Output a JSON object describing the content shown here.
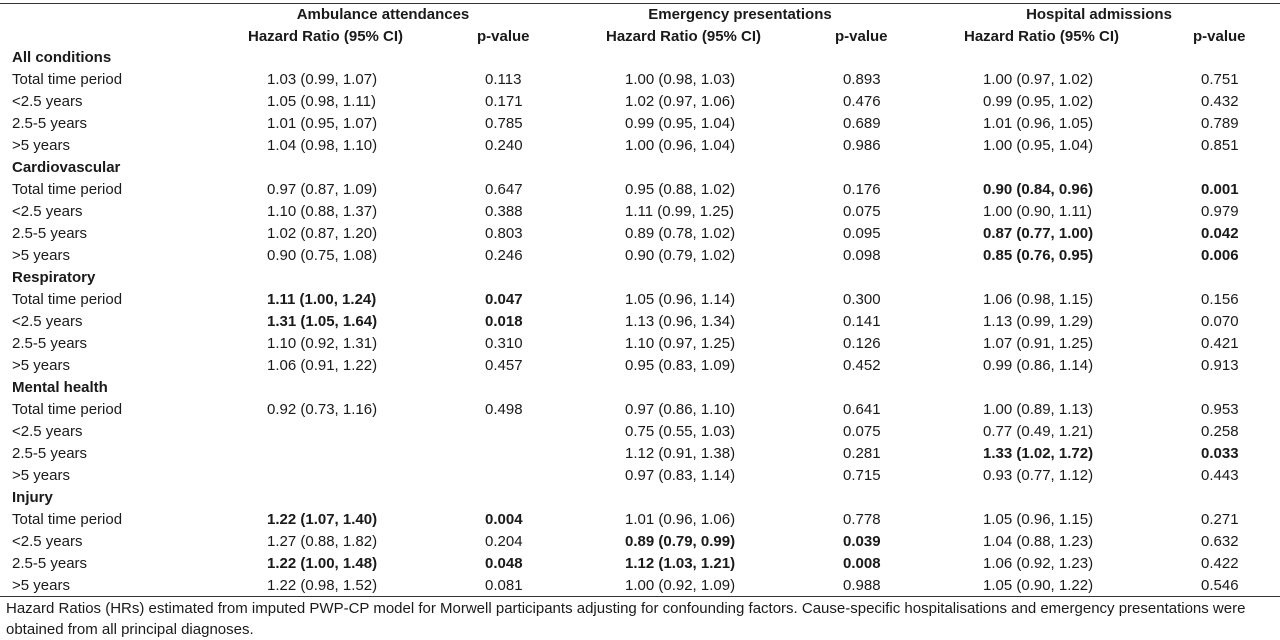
{
  "table": {
    "column_groups": [
      "Ambulance attendances",
      "Emergency presentations",
      "Hospital admissions"
    ],
    "hr_header": "Hazard Ratio (95% CI)",
    "p_header": "p-value",
    "rows": [
      {
        "kind": "group",
        "label": "All conditions"
      },
      {
        "kind": "data",
        "label": "Total time period",
        "cells": [
          {
            "hr": "1.03 (0.99, 1.07)",
            "p": "0.113",
            "bold": false
          },
          {
            "hr": "1.00 (0.98, 1.03)",
            "p": "0.893",
            "bold": false
          },
          {
            "hr": "1.00 (0.97, 1.02)",
            "p": "0.751",
            "bold": false
          }
        ]
      },
      {
        "kind": "data",
        "label": "<2.5 years",
        "cells": [
          {
            "hr": "1.05 (0.98, 1.11)",
            "p": "0.171",
            "bold": false
          },
          {
            "hr": "1.02 (0.97, 1.06)",
            "p": "0.476",
            "bold": false
          },
          {
            "hr": "0.99 (0.95, 1.02)",
            "p": "0.432",
            "bold": false
          }
        ]
      },
      {
        "kind": "data",
        "label": "2.5-5 years",
        "cells": [
          {
            "hr": "1.01 (0.95, 1.07)",
            "p": "0.785",
            "bold": false
          },
          {
            "hr": "0.99 (0.95, 1.04)",
            "p": "0.689",
            "bold": false
          },
          {
            "hr": "1.01 (0.96, 1.05)",
            "p": "0.789",
            "bold": false
          }
        ]
      },
      {
        "kind": "data",
        "label": ">5 years",
        "cells": [
          {
            "hr": "1.04 (0.98, 1.10)",
            "p": "0.240",
            "bold": false
          },
          {
            "hr": "1.00 (0.96, 1.04)",
            "p": "0.986",
            "bold": false
          },
          {
            "hr": "1.00 (0.95, 1.04)",
            "p": "0.851",
            "bold": false
          }
        ]
      },
      {
        "kind": "group",
        "label": "Cardiovascular"
      },
      {
        "kind": "data",
        "label": "Total time period",
        "cells": [
          {
            "hr": "0.97 (0.87, 1.09)",
            "p": "0.647",
            "bold": false
          },
          {
            "hr": "0.95 (0.88, 1.02)",
            "p": "0.176",
            "bold": false
          },
          {
            "hr": "0.90 (0.84, 0.96)",
            "p": "0.001",
            "bold": true
          }
        ]
      },
      {
        "kind": "data",
        "label": "<2.5 years",
        "cells": [
          {
            "hr": "1.10 (0.88, 1.37)",
            "p": "0.388",
            "bold": false
          },
          {
            "hr": "1.11 (0.99, 1.25)",
            "p": "0.075",
            "bold": false
          },
          {
            "hr": "1.00 (0.90, 1.11)",
            "p": "0.979",
            "bold": false
          }
        ]
      },
      {
        "kind": "data",
        "label": "2.5-5 years",
        "cells": [
          {
            "hr": "1.02 (0.87, 1.20)",
            "p": "0.803",
            "bold": false
          },
          {
            "hr": "0.89 (0.78, 1.02)",
            "p": "0.095",
            "bold": false
          },
          {
            "hr": "0.87 (0.77, 1.00)",
            "p": "0.042",
            "bold": true
          }
        ]
      },
      {
        "kind": "data",
        "label": ">5 years",
        "cells": [
          {
            "hr": "0.90 (0.75, 1.08)",
            "p": "0.246",
            "bold": false
          },
          {
            "hr": "0.90 (0.79, 1.02)",
            "p": "0.098",
            "bold": false
          },
          {
            "hr": "0.85 (0.76, 0.95)",
            "p": "0.006",
            "bold": true
          }
        ]
      },
      {
        "kind": "group",
        "label": "Respiratory"
      },
      {
        "kind": "data",
        "label": "Total time period",
        "cells": [
          {
            "hr": "1.11 (1.00, 1.24)",
            "p": "0.047",
            "bold": true
          },
          {
            "hr": "1.05 (0.96, 1.14)",
            "p": "0.300",
            "bold": false
          },
          {
            "hr": "1.06 (0.98, 1.15)",
            "p": "0.156",
            "bold": false
          }
        ]
      },
      {
        "kind": "data",
        "label": "<2.5 years",
        "cells": [
          {
            "hr": "1.31 (1.05, 1.64)",
            "p": "0.018",
            "bold": true
          },
          {
            "hr": "1.13 (0.96, 1.34)",
            "p": "0.141",
            "bold": false
          },
          {
            "hr": "1.13 (0.99, 1.29)",
            "p": "0.070",
            "bold": false
          }
        ]
      },
      {
        "kind": "data",
        "label": "2.5-5 years",
        "cells": [
          {
            "hr": "1.10 (0.92, 1.31)",
            "p": "0.310",
            "bold": false
          },
          {
            "hr": "1.10 (0.97, 1.25)",
            "p": "0.126",
            "bold": false
          },
          {
            "hr": "1.07 (0.91, 1.25)",
            "p": "0.421",
            "bold": false
          }
        ]
      },
      {
        "kind": "data",
        "label": ">5 years",
        "cells": [
          {
            "hr": "1.06 (0.91, 1.22)",
            "p": "0.457",
            "bold": false
          },
          {
            "hr": "0.95 (0.83, 1.09)",
            "p": "0.452",
            "bold": false
          },
          {
            "hr": "0.99 (0.86, 1.14)",
            "p": "0.913",
            "bold": false
          }
        ]
      },
      {
        "kind": "group",
        "label": "Mental health"
      },
      {
        "kind": "data",
        "label": "Total time period",
        "cells": [
          {
            "hr": "0.92 (0.73, 1.16)",
            "p": "0.498",
            "bold": false
          },
          {
            "hr": "0.97 (0.86, 1.10)",
            "p": "0.641",
            "bold": false
          },
          {
            "hr": "1.00 (0.89, 1.13)",
            "p": "0.953",
            "bold": false
          }
        ]
      },
      {
        "kind": "data",
        "label": "<2.5 years",
        "cells": [
          {
            "hr": "",
            "p": "",
            "bold": false
          },
          {
            "hr": "0.75 (0.55, 1.03)",
            "p": "0.075",
            "bold": false
          },
          {
            "hr": "0.77 (0.49, 1.21)",
            "p": "0.258",
            "bold": false
          }
        ]
      },
      {
        "kind": "data",
        "label": "2.5-5 years",
        "cells": [
          {
            "hr": "",
            "p": "",
            "bold": false
          },
          {
            "hr": "1.12 (0.91, 1.38)",
            "p": "0.281",
            "bold": false
          },
          {
            "hr": "1.33 (1.02, 1.72)",
            "p": "0.033",
            "bold": true
          }
        ]
      },
      {
        "kind": "data",
        "label": ">5 years",
        "cells": [
          {
            "hr": "",
            "p": "",
            "bold": false
          },
          {
            "hr": "0.97 (0.83, 1.14)",
            "p": "0.715",
            "bold": false
          },
          {
            "hr": "0.93 (0.77, 1.12)",
            "p": "0.443",
            "bold": false
          }
        ]
      },
      {
        "kind": "group",
        "label": "Injury"
      },
      {
        "kind": "data",
        "label": "Total time period",
        "cells": [
          {
            "hr": "1.22 (1.07, 1.40)",
            "p": "0.004",
            "bold": true
          },
          {
            "hr": "1.01 (0.96, 1.06)",
            "p": "0.778",
            "bold": false
          },
          {
            "hr": "1.05 (0.96, 1.15)",
            "p": "0.271",
            "bold": false
          }
        ]
      },
      {
        "kind": "data",
        "label": "<2.5 years",
        "cells": [
          {
            "hr": "1.27 (0.88, 1.82)",
            "p": "0.204",
            "bold": false
          },
          {
            "hr": "0.89 (0.79, 0.99)",
            "p": "0.039",
            "bold": true
          },
          {
            "hr": "1.04 (0.88, 1.23)",
            "p": "0.632",
            "bold": false
          }
        ]
      },
      {
        "kind": "data",
        "label": "2.5-5 years",
        "cells": [
          {
            "hr": "1.22 (1.00, 1.48)",
            "p": "0.048",
            "bold": true
          },
          {
            "hr": "1.12 (1.03, 1.21)",
            "p": "0.008",
            "bold": true
          },
          {
            "hr": "1.06 (0.92, 1.23)",
            "p": "0.422",
            "bold": false
          }
        ]
      },
      {
        "kind": "data",
        "label": ">5 years",
        "cells": [
          {
            "hr": "1.22 (0.98, 1.52)",
            "p": "0.081",
            "bold": false
          },
          {
            "hr": "1.00 (0.92, 1.09)",
            "p": "0.988",
            "bold": false
          },
          {
            "hr": "1.05 (0.90, 1.22)",
            "p": "0.546",
            "bold": false
          }
        ]
      }
    ]
  },
  "footnote": "Hazard Ratios (HRs) estimated from imputed PWP-CP model for Morwell participants adjusting for confounding factors. Cause-specific hospitalisations and emergency presentations were obtained from all principal diagnoses."
}
